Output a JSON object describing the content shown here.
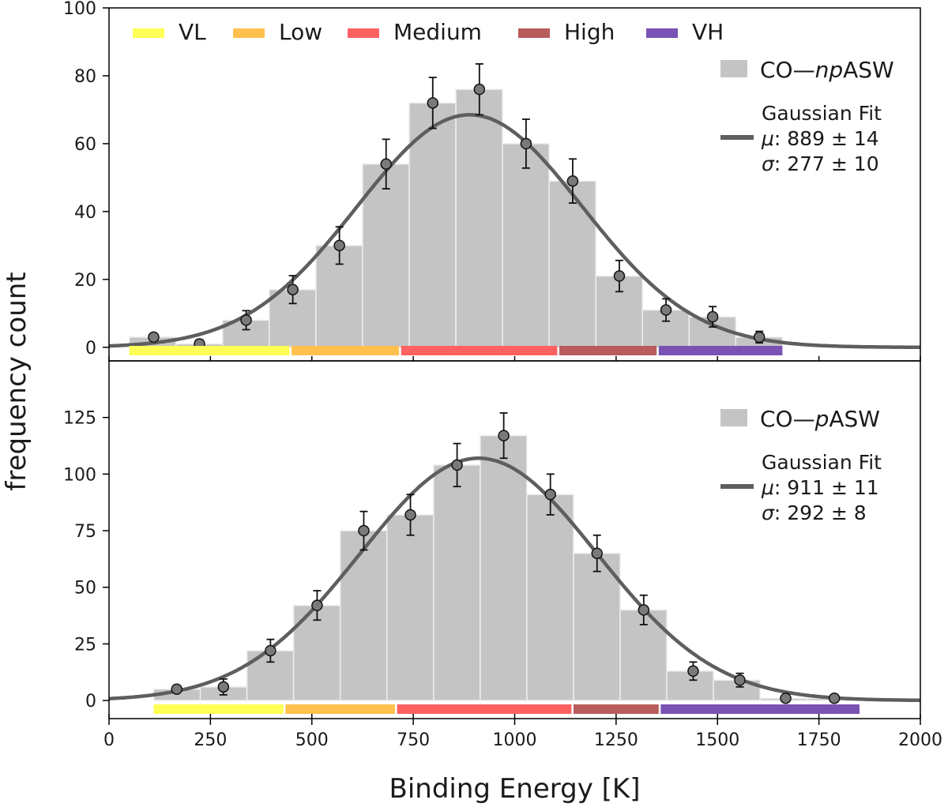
{
  "chart_data": [
    {
      "type": "bar",
      "panel": "top",
      "series_label": "CO—npASW",
      "series_label_parts": {
        "prefix": "CO—",
        "italic": "np",
        "suffix": "ASW"
      },
      "bin_edges": [
        50,
        165,
        280,
        395,
        510,
        625,
        740,
        855,
        970,
        1085,
        1200,
        1315,
        1430,
        1545,
        1660
      ],
      "bin_counts": [
        3,
        1,
        8,
        17,
        30,
        54,
        72,
        76,
        60,
        49,
        21,
        11,
        9,
        3
      ],
      "points": [
        {
          "x": 110,
          "y": 3,
          "err": 0
        },
        {
          "x": 223,
          "y": 1,
          "err": 1.2
        },
        {
          "x": 338,
          "y": 8,
          "err": 2.8
        },
        {
          "x": 453,
          "y": 17,
          "err": 4.1
        },
        {
          "x": 568,
          "y": 30,
          "err": 5.5
        },
        {
          "x": 683,
          "y": 54,
          "err": 7.3
        },
        {
          "x": 798,
          "y": 72,
          "err": 7.5
        },
        {
          "x": 913,
          "y": 76,
          "err": 7.5
        },
        {
          "x": 1028,
          "y": 60,
          "err": 7.2
        },
        {
          "x": 1143,
          "y": 49,
          "err": 6.5
        },
        {
          "x": 1258,
          "y": 21,
          "err": 4.6
        },
        {
          "x": 1373,
          "y": 11,
          "err": 3.3
        },
        {
          "x": 1488,
          "y": 9,
          "err": 3.0
        },
        {
          "x": 1603,
          "y": 3,
          "err": 1.7
        }
      ],
      "fit": {
        "label": "Gaussian Fit",
        "mu": 889,
        "sigma": 277,
        "amplitude": 68.5,
        "mu_text": ": 889 ± 14",
        "sigma_text": ": 277 ± 10"
      },
      "yticks": [
        0,
        20,
        40,
        60,
        80,
        100
      ],
      "ytick_labels": [
        "0",
        "20",
        "40",
        "60",
        "80",
        "100"
      ],
      "ylim": [
        -4,
        100
      ],
      "category_bands": [
        {
          "name": "VL",
          "start": 50,
          "end": 445
        },
        {
          "name": "Low",
          "start": 450,
          "end": 715
        },
        {
          "name": "Medium",
          "start": 720,
          "end": 1105
        },
        {
          "name": "High",
          "start": 1110,
          "end": 1350
        },
        {
          "name": "VH",
          "start": 1355,
          "end": 1660
        }
      ]
    },
    {
      "type": "bar",
      "panel": "bottom",
      "series_label": "CO—pASW",
      "series_label_parts": {
        "prefix": "CO—",
        "italic": "p",
        "suffix": "ASW"
      },
      "bin_edges": [
        110,
        225,
        340,
        455,
        570,
        685,
        800,
        915,
        1030,
        1145,
        1260,
        1375,
        1490,
        1605,
        1720,
        1835
      ],
      "bin_counts": [
        5,
        6,
        22,
        42,
        75,
        82,
        104,
        117,
        91,
        65,
        40,
        13,
        9,
        1,
        1
      ],
      "points": [
        {
          "x": 167,
          "y": 5,
          "err": 0
        },
        {
          "x": 282,
          "y": 6,
          "err": 3.5
        },
        {
          "x": 398,
          "y": 22,
          "err": 5
        },
        {
          "x": 513,
          "y": 42,
          "err": 6.5
        },
        {
          "x": 628,
          "y": 75,
          "err": 8.5
        },
        {
          "x": 743,
          "y": 82,
          "err": 9
        },
        {
          "x": 858,
          "y": 104,
          "err": 9.5
        },
        {
          "x": 973,
          "y": 117,
          "err": 10
        },
        {
          "x": 1088,
          "y": 91,
          "err": 9
        },
        {
          "x": 1203,
          "y": 65,
          "err": 8
        },
        {
          "x": 1318,
          "y": 40,
          "err": 6.5
        },
        {
          "x": 1440,
          "y": 13,
          "err": 4
        },
        {
          "x": 1555,
          "y": 9,
          "err": 3
        },
        {
          "x": 1668,
          "y": 1,
          "err": 0
        },
        {
          "x": 1788,
          "y": 1,
          "err": 0
        }
      ],
      "fit": {
        "label": "Gaussian Fit",
        "mu": 911,
        "sigma": 292,
        "amplitude": 107,
        "mu_text": ": 911 ± 11",
        "sigma_text": ": 292 ± 8"
      },
      "yticks": [
        0,
        25,
        50,
        75,
        100,
        125
      ],
      "ytick_labels": [
        "0",
        "25",
        "50",
        "75",
        "100",
        "125"
      ],
      "ylim": [
        -8,
        150
      ],
      "category_bands": [
        {
          "name": "VL",
          "start": 110,
          "end": 430
        },
        {
          "name": "Low",
          "start": 435,
          "end": 705
        },
        {
          "name": "Medium",
          "start": 710,
          "end": 1140
        },
        {
          "name": "High",
          "start": 1145,
          "end": 1355
        },
        {
          "name": "VH",
          "start": 1360,
          "end": 1850
        }
      ]
    }
  ],
  "category_legend": [
    {
      "name": "VL",
      "color": "#ffff55"
    },
    {
      "name": "Low",
      "color": "#ffc04d"
    },
    {
      "name": "Medium",
      "color": "#ff6161"
    },
    {
      "name": "High",
      "color": "#b85c5c"
    },
    {
      "name": "VH",
      "color": "#7a52b3"
    }
  ],
  "xlabel": "Binding Energy [K]",
  "ylabel": "frequency count",
  "xlim": [
    0,
    2000
  ],
  "xticks": [
    0,
    250,
    500,
    750,
    1000,
    1250,
    1500,
    1750,
    2000
  ],
  "xtick_labels": [
    "0",
    "250",
    "500",
    "750",
    "1000",
    "1250",
    "1500",
    "1750",
    "2000"
  ],
  "mu_symbol": "μ",
  "sigma_symbol": "σ",
  "colors": {
    "bar": "#c4c4c4",
    "bar_edge": "#eeeeee",
    "fit_line": "#5e5e5e",
    "marker": "#7a7a7a",
    "axis": "#000000"
  }
}
